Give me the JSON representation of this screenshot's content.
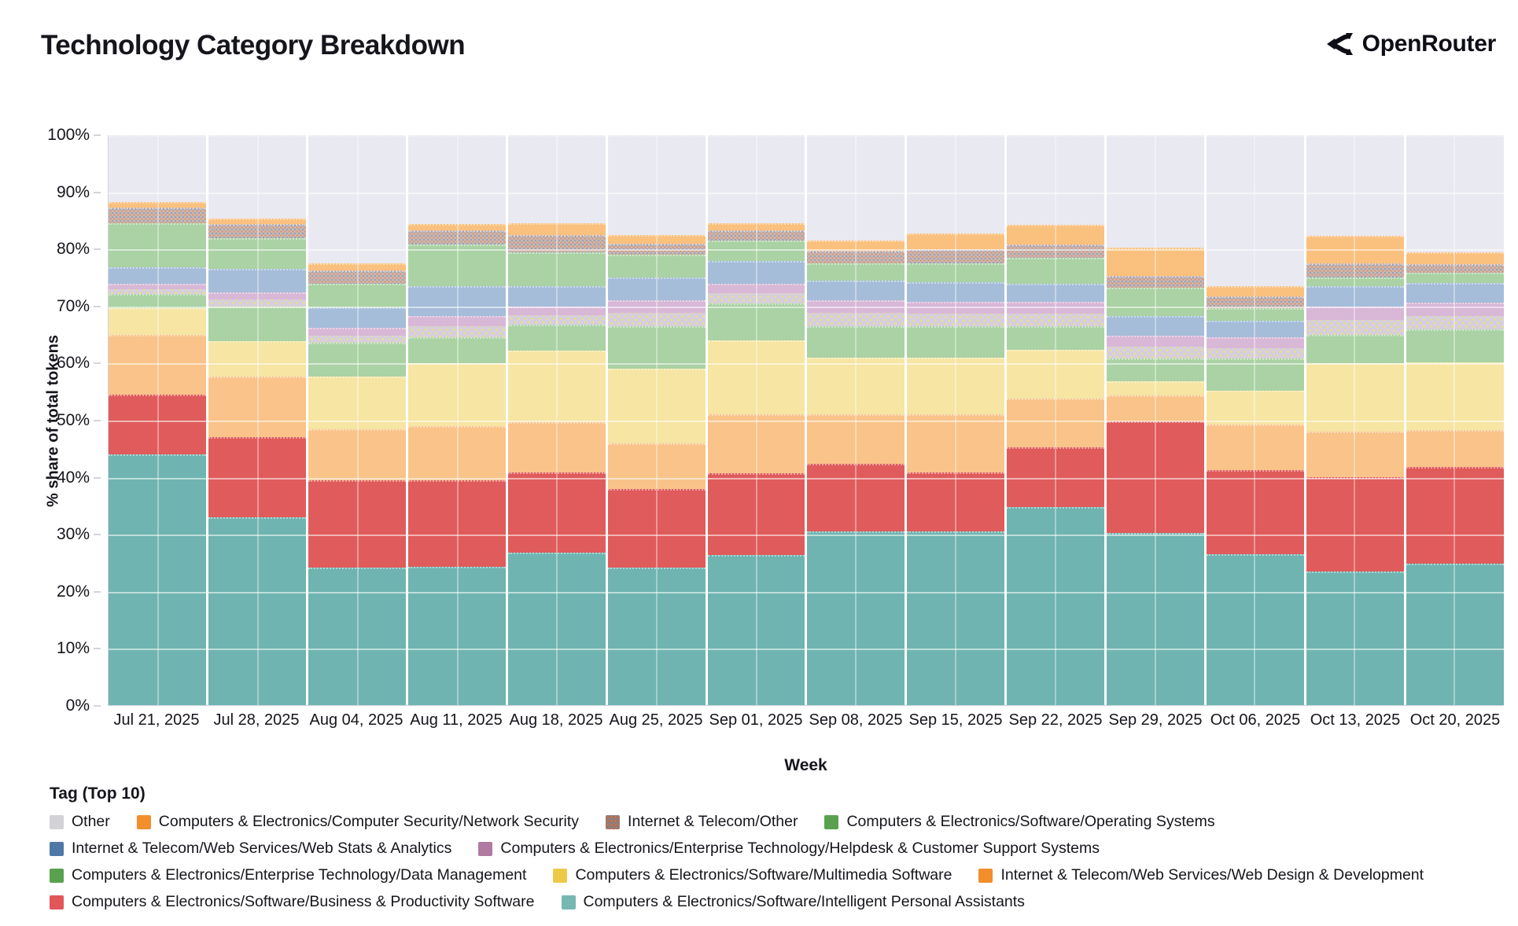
{
  "header": {
    "title": "Technology Category Breakdown",
    "brand": "OpenRouter"
  },
  "chart": {
    "ylabel": "% share of total tokens",
    "xlabel": "Week",
    "legend_title": "Tag (Top 10)",
    "yticks": [
      "0%",
      "10%",
      "20%",
      "30%",
      "40%",
      "50%",
      "60%",
      "70%",
      "80%",
      "90%",
      "100%"
    ],
    "plot_bg": "#ffffff",
    "gridline_color": "rgba(255,255,255,0.55)"
  },
  "chart_data": {
    "type": "bar",
    "stacked": true,
    "title": "Technology Category Breakdown",
    "xlabel": "Week",
    "ylabel": "% share of total tokens",
    "ylim": [
      0,
      100
    ],
    "legend_position": "bottom",
    "legend_title": "Tag (Top 10)",
    "categories": [
      "Jul 21, 2025",
      "Jul 28, 2025",
      "Aug 04, 2025",
      "Aug 11, 2025",
      "Aug 18, 2025",
      "Aug 25, 2025",
      "Sep 01, 2025",
      "Sep 08, 2025",
      "Sep 15, 2025",
      "Sep 22, 2025",
      "Sep 29, 2025",
      "Oct 06, 2025",
      "Oct 13, 2025",
      "Oct 20, 2025"
    ],
    "stack_order_note": "series listed bottom-to-top of the stack",
    "series": [
      {
        "id": "ipa",
        "name": "Computers & Electronics/Software/Intelligent Personal Assistants",
        "legend_color": "#76b7b2",
        "fill": "#6fb4b0",
        "values": [
          44.0,
          33.0,
          24.2,
          24.3,
          26.8,
          24.2,
          26.3,
          30.5,
          30.5,
          34.8,
          30.2,
          26.5,
          23.5,
          24.8
        ]
      },
      {
        "id": "busprod",
        "name": "Computers & Electronics/Software/Business & Productivity Software",
        "legend_color": "#e15759",
        "fill": "#e05b5b",
        "values": [
          10.5,
          14.0,
          15.2,
          15.2,
          14.0,
          13.8,
          14.4,
          11.8,
          10.3,
          10.4,
          19.6,
          14.8,
          16.5,
          17.0
        ]
      },
      {
        "id": "webdesign",
        "name": "Internet & Telecom/Web Services/Web Design & Development",
        "legend_color": "#f28e2b",
        "fill": "#f9c389",
        "values": [
          10.5,
          10.6,
          9.0,
          9.5,
          8.9,
          8.0,
          10.3,
          8.7,
          10.2,
          8.6,
          4.5,
          7.9,
          8.0,
          6.5
        ]
      },
      {
        "id": "multimedia",
        "name": "Computers & Electronics/Software/Multimedia Software",
        "legend_color": "#edc948",
        "fill": "#f6e5a3",
        "values": [
          4.7,
          6.2,
          9.2,
          11.0,
          12.5,
          13.0,
          13.0,
          10.0,
          10.0,
          8.5,
          2.5,
          6.0,
          12.0,
          11.9
        ]
      },
      {
        "id": "datamgmt",
        "name": "Computers & Electronics/Enterprise Technology/Data Management",
        "legend_color": "#59a14f",
        "fill": "#aad2a4",
        "values": [
          2.4,
          6.2,
          6.0,
          4.5,
          4.6,
          7.5,
          6.5,
          5.5,
          5.5,
          4.2,
          4.0,
          5.6,
          5.0,
          5.7
        ]
      },
      {
        "id": "helpdesk",
        "name": "Computers & Electronics/Enterprise Technology/Helpdesk & Customer Support Systems",
        "legend_color": "#b07aa1",
        "fill": "#d8b7d7",
        "pattern": "dots-lower",
        "values": [
          1.8,
          2.4,
          2.6,
          3.8,
          3.2,
          4.5,
          3.5,
          4.5,
          4.3,
          4.3,
          4.0,
          3.7,
          5.0,
          4.7
        ]
      },
      {
        "id": "webstats",
        "name": "Internet & Telecom/Web Services/Web Stats & Analytics",
        "legend_color": "#4e79a7",
        "fill": "#a5bdd9",
        "values": [
          3.0,
          4.2,
          3.6,
          5.2,
          3.5,
          4.0,
          4.0,
          3.5,
          3.4,
          3.2,
          3.5,
          3.0,
          3.5,
          3.5
        ]
      },
      {
        "id": "os",
        "name": "Computers & Electronics/Software/Operating Systems",
        "legend_color": "#59a14f",
        "fill": "#aad2a4",
        "values": [
          7.6,
          5.3,
          4.1,
          7.3,
          6.0,
          4.0,
          3.5,
          3.0,
          3.3,
          4.5,
          5.0,
          2.2,
          1.5,
          1.8
        ]
      },
      {
        "id": "itother",
        "name": "Internet & Telecom/Other",
        "legend_color": "#9c755f",
        "fill": "#cdbaac",
        "pattern": "dots",
        "values": [
          2.8,
          2.5,
          2.4,
          2.5,
          3.0,
          2.0,
          1.8,
          2.2,
          2.5,
          2.3,
          2.0,
          2.0,
          2.5,
          1.5
        ]
      },
      {
        "id": "netsec",
        "name": "Computers & Electronics/Computer Security/Network Security",
        "legend_color": "#f28e2b",
        "fill": "#fac07e",
        "values": [
          1.0,
          1.0,
          1.2,
          1.1,
          2.0,
          1.5,
          1.2,
          1.8,
          2.8,
          3.5,
          5.0,
          1.8,
          4.8,
          2.1
        ]
      },
      {
        "id": "other",
        "name": "Other",
        "legend_color": "#d2d2d7",
        "fill": "#e9e9f1",
        "values": [
          11.7,
          14.6,
          22.5,
          15.6,
          15.5,
          17.5,
          15.5,
          18.5,
          17.2,
          15.7,
          19.7,
          26.5,
          17.7,
          20.5
        ]
      }
    ],
    "legend_rows": [
      [
        "other",
        "netsec",
        "itother",
        "os"
      ],
      [
        "webstats",
        "helpdesk"
      ],
      [
        "datamgmt",
        "multimedia",
        "webdesign"
      ],
      [
        "busprod",
        "ipa"
      ]
    ]
  }
}
